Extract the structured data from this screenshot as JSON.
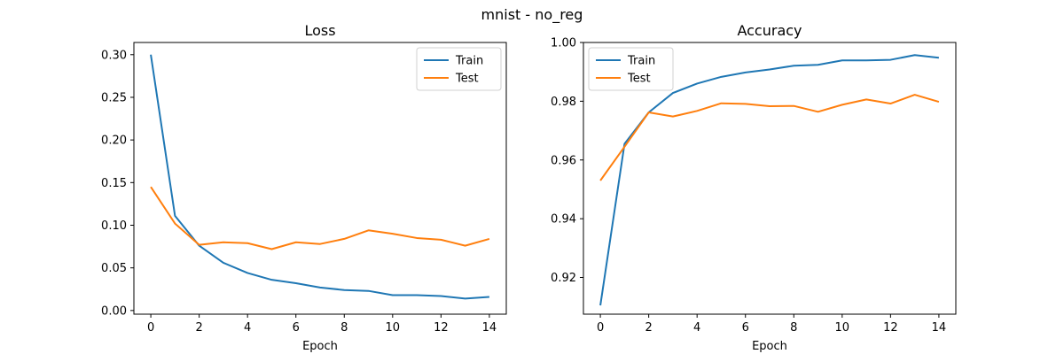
{
  "suptitle": "mnist - no_reg",
  "series_colors": {
    "train": "#1f77b4",
    "test": "#ff7f0e"
  },
  "chart_data": [
    {
      "type": "line",
      "title": "Loss",
      "xlabel": "Epoch",
      "ylabel": "",
      "x": [
        0,
        1,
        2,
        3,
        4,
        5,
        6,
        7,
        8,
        9,
        10,
        11,
        12,
        13,
        14
      ],
      "xlim": [
        -0.7,
        14.7
      ],
      "ylim": [
        -0.0043,
        0.3143
      ],
      "xticks": [
        0,
        2,
        4,
        6,
        8,
        10,
        12,
        14
      ],
      "xtick_labels": [
        "0",
        "2",
        "4",
        "6",
        "8",
        "10",
        "12",
        "14"
      ],
      "yticks": [
        0.0,
        0.05,
        0.1,
        0.15,
        0.2,
        0.25,
        0.3
      ],
      "ytick_labels": [
        "0.00",
        "0.05",
        "0.10",
        "0.15",
        "0.20",
        "0.25",
        "0.30"
      ],
      "legend": "top-right",
      "grid": false,
      "series": [
        {
          "name": "Train",
          "values": [
            0.3,
            0.111,
            0.076,
            0.056,
            0.044,
            0.036,
            0.032,
            0.027,
            0.024,
            0.023,
            0.018,
            0.018,
            0.017,
            0.014,
            0.016
          ]
        },
        {
          "name": "Test",
          "values": [
            0.145,
            0.102,
            0.077,
            0.08,
            0.079,
            0.072,
            0.08,
            0.078,
            0.084,
            0.094,
            0.09,
            0.085,
            0.083,
            0.076,
            0.084
          ]
        }
      ]
    },
    {
      "type": "line",
      "title": "Accuracy",
      "xlabel": "Epoch",
      "ylabel": "",
      "x": [
        0,
        1,
        2,
        3,
        4,
        5,
        6,
        7,
        8,
        9,
        10,
        11,
        12,
        13,
        14
      ],
      "xlim": [
        -0.7,
        14.7
      ],
      "ylim": [
        0.9075,
        1.0
      ],
      "xticks": [
        0,
        2,
        4,
        6,
        8,
        10,
        12,
        14
      ],
      "xtick_labels": [
        "0",
        "2",
        "4",
        "6",
        "8",
        "10",
        "12",
        "14"
      ],
      "yticks": [
        0.92,
        0.94,
        0.96,
        0.98,
        1.0
      ],
      "ytick_labels": [
        "0.92",
        "0.94",
        "0.96",
        "0.98",
        "1.00"
      ],
      "legend": "top-left",
      "grid": false,
      "series": [
        {
          "name": "Train",
          "values": [
            0.9105,
            0.9655,
            0.9762,
            0.9828,
            0.986,
            0.9883,
            0.9898,
            0.9908,
            0.9921,
            0.9924,
            0.9939,
            0.9939,
            0.9941,
            0.9957,
            0.9948
          ]
        },
        {
          "name": "Test",
          "values": [
            0.953,
            0.9645,
            0.9762,
            0.9748,
            0.9767,
            0.9793,
            0.9791,
            0.9783,
            0.9784,
            0.9764,
            0.9788,
            0.9806,
            0.9792,
            0.9822,
            0.9798
          ]
        }
      ]
    }
  ]
}
